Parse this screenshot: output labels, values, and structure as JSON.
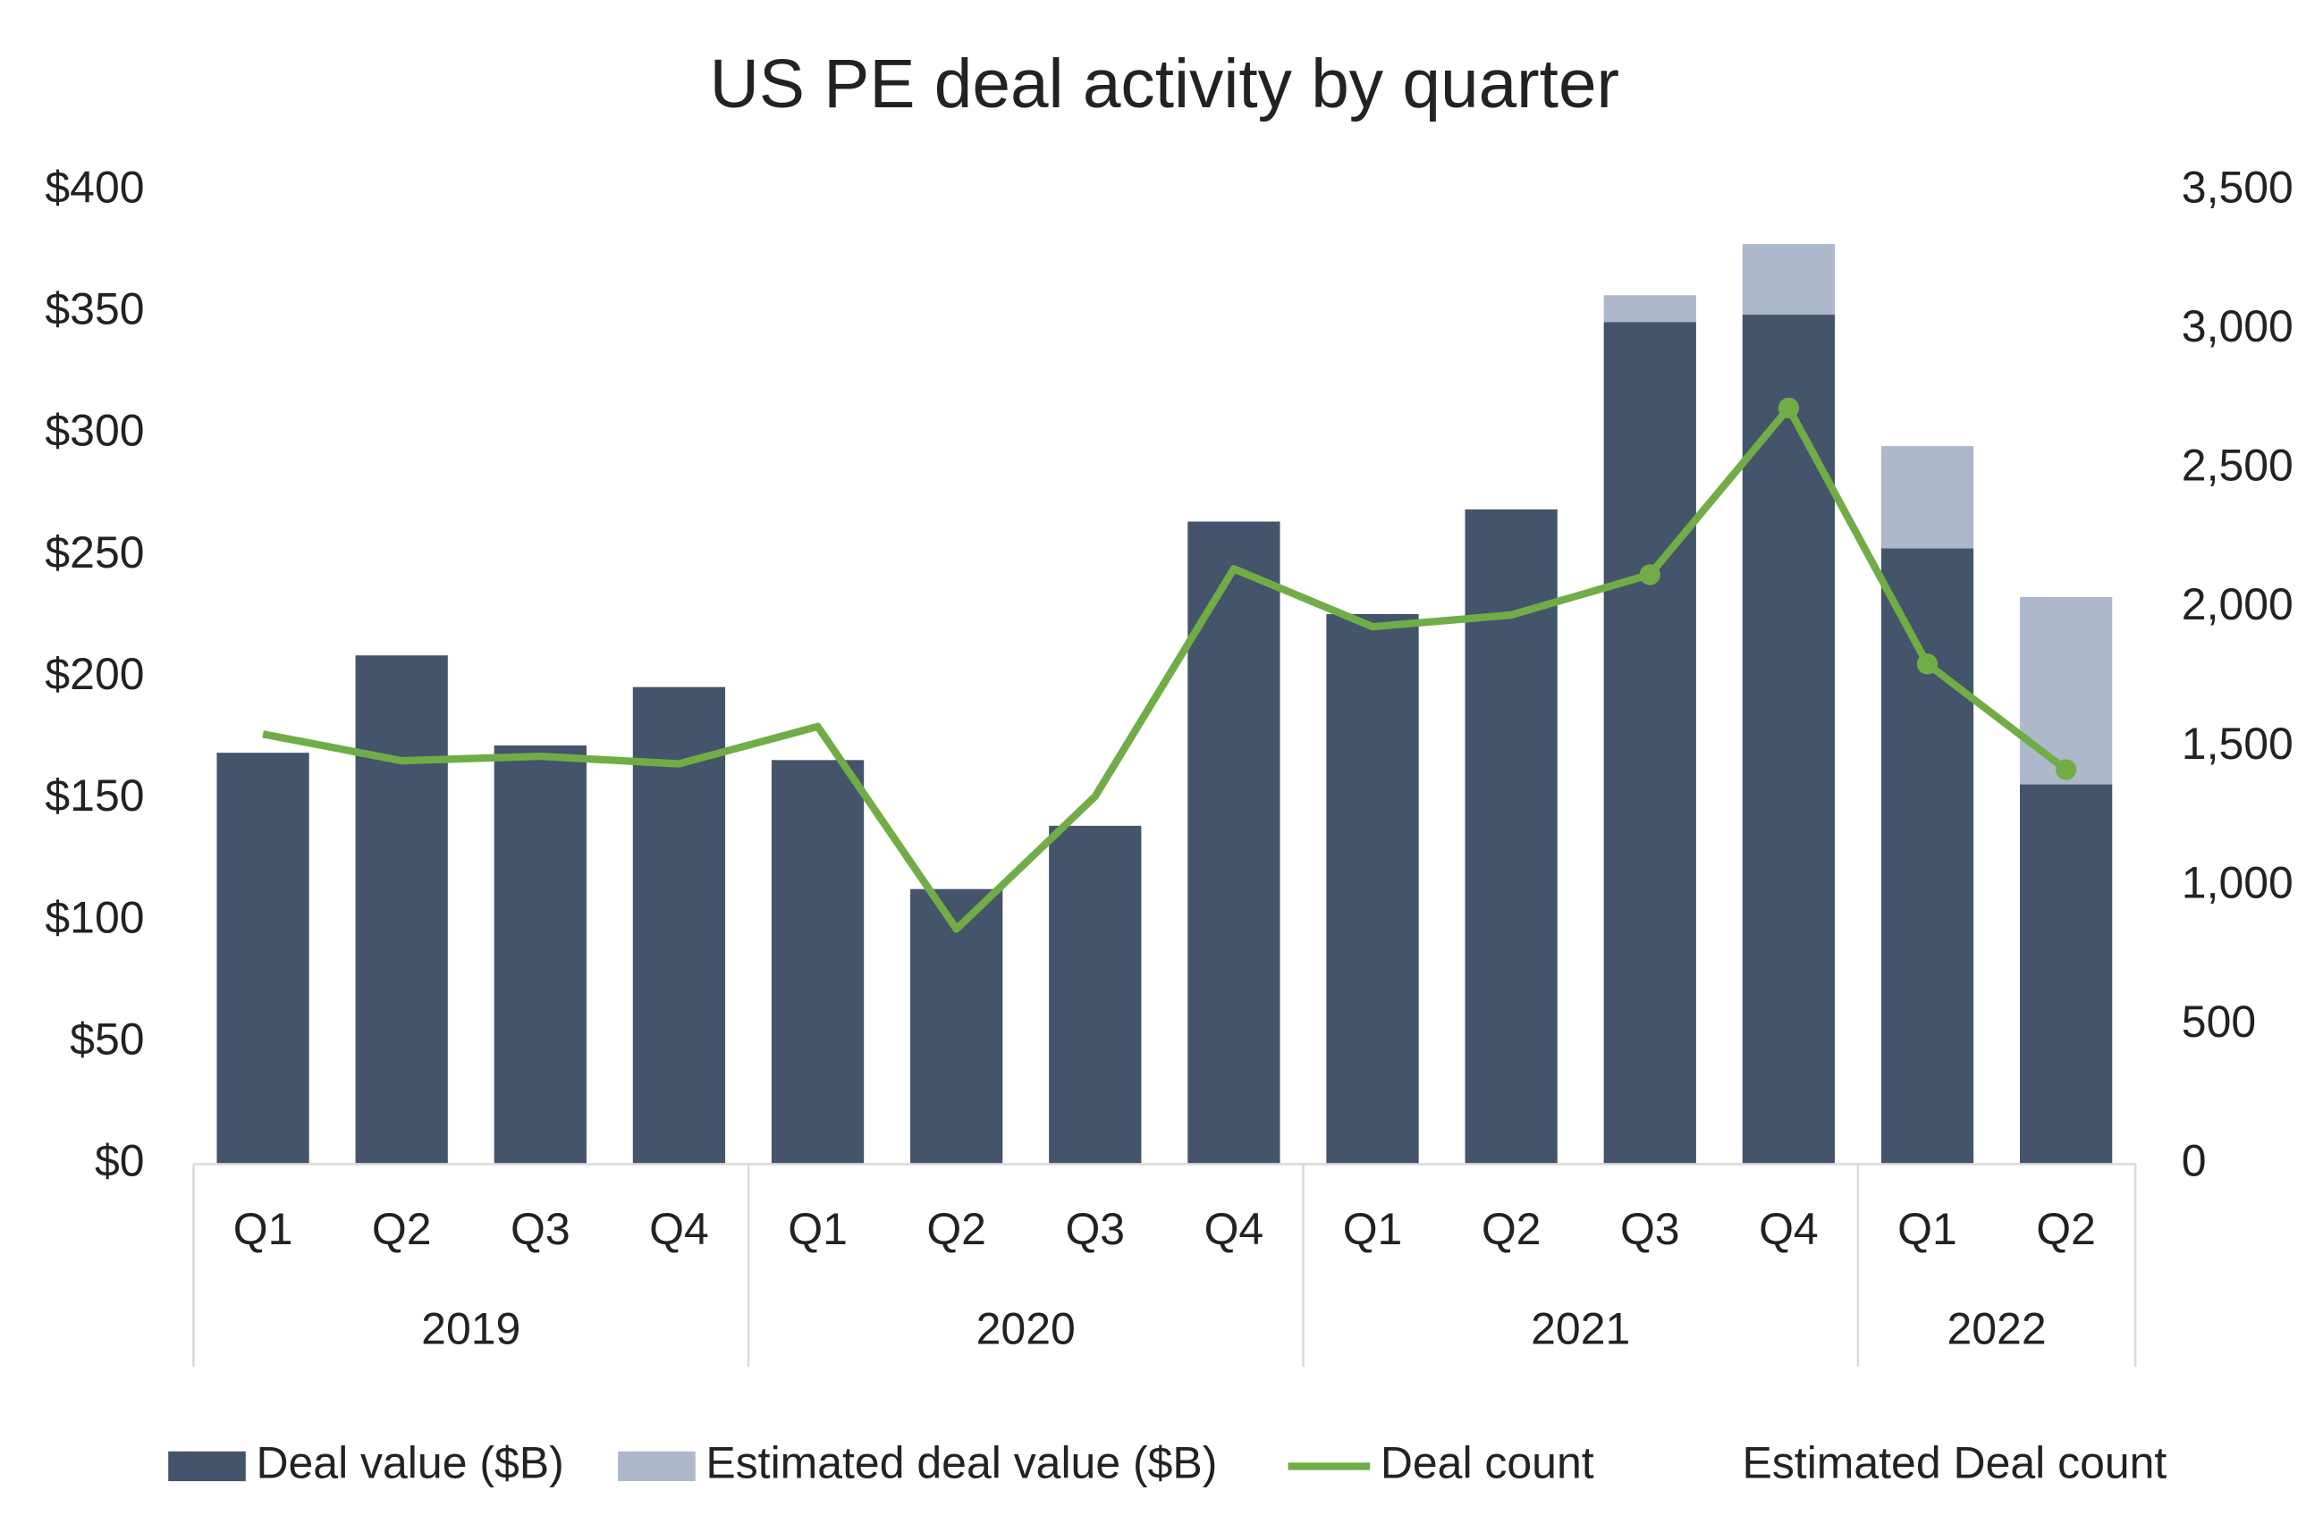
{
  "chart_data": {
    "type": "bar",
    "title": "US PE deal activity by quarter",
    "categories": [
      "Q1",
      "Q2",
      "Q3",
      "Q4",
      "Q1",
      "Q2",
      "Q3",
      "Q4",
      "Q1",
      "Q2",
      "Q3",
      "Q4",
      "Q1",
      "Q2"
    ],
    "category_groups": [
      {
        "label": "2019",
        "count": 4
      },
      {
        "label": "2020",
        "count": 4
      },
      {
        "label": "2021",
        "count": 4
      },
      {
        "label": "2022",
        "count": 2
      }
    ],
    "stacked": true,
    "series": [
      {
        "name": "Deal value ($B)",
        "type": "bar",
        "color": "#44546a",
        "values": [
          169,
          209,
          172,
          196,
          166,
          113,
          139,
          264,
          226,
          269,
          346,
          349,
          253,
          156
        ]
      },
      {
        "name": "Estimated deal value ($B)",
        "type": "bar",
        "color": "#adb9ca",
        "values": [
          null,
          null,
          null,
          null,
          null,
          null,
          null,
          null,
          null,
          null,
          11,
          29,
          42,
          77
        ]
      },
      {
        "name": "Deal count",
        "type": "line",
        "axis": "y2",
        "color": "#70ad47",
        "values": [
          1546,
          1450,
          1466,
          1439,
          1573,
          845,
          1322,
          2140,
          1932,
          1974,
          2119,
          2718,
          1798,
          1418
        ]
      },
      {
        "name": "Estimated Deal count",
        "type": "scatter",
        "axis": "y2",
        "color": "#70ad47",
        "values": [
          null,
          null,
          null,
          null,
          null,
          null,
          null,
          null,
          null,
          null,
          2119,
          2718,
          1798,
          1418
        ]
      }
    ],
    "ylim": [
      0,
      400
    ],
    "yticks": [
      {
        "value": 0,
        "label": "$0"
      },
      {
        "value": 50,
        "label": "$50"
      },
      {
        "value": 100,
        "label": "$100"
      },
      {
        "value": 150,
        "label": "$150"
      },
      {
        "value": 200,
        "label": "$200"
      },
      {
        "value": 250,
        "label": "$250"
      },
      {
        "value": 300,
        "label": "$300"
      },
      {
        "value": 350,
        "label": "$350"
      },
      {
        "value": 400,
        "label": "$400"
      }
    ],
    "y2lim": [
      0,
      3500
    ],
    "y2ticks": [
      0,
      500,
      {
        "value": 1000,
        "label": "1,000"
      },
      {
        "value": 1500,
        "label": "1,500"
      },
      {
        "value": 2000,
        "label": "2,000"
      },
      {
        "value": 2500,
        "label": "2,500"
      },
      {
        "value": 3000,
        "label": "3,000"
      },
      {
        "value": 3500,
        "label": "3,500"
      }
    ],
    "grid": false,
    "legend": "bottom"
  }
}
